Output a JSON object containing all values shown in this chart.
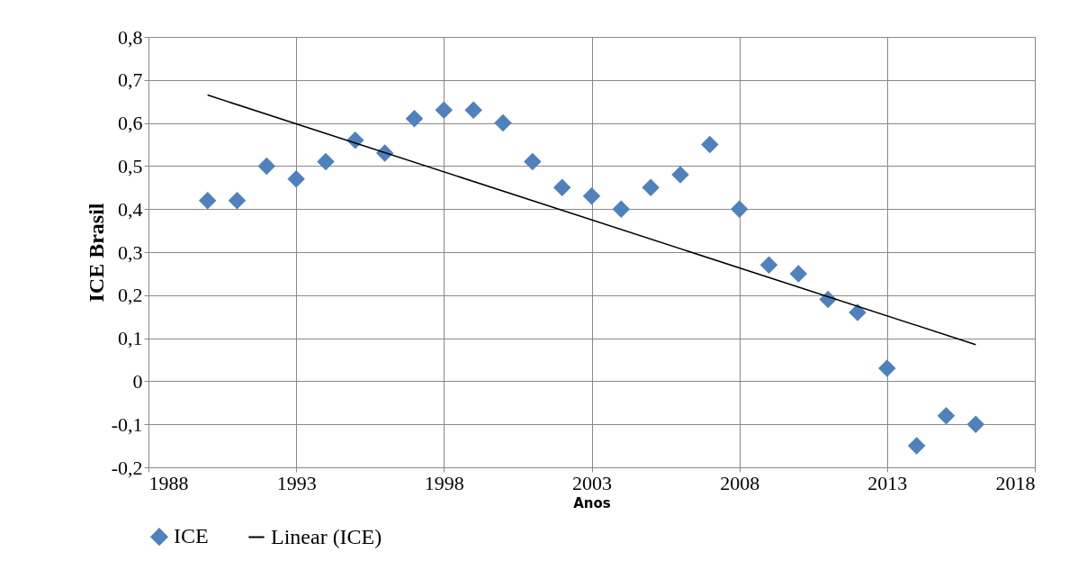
{
  "chart_data": {
    "type": "scatter",
    "xlabel": "Anos",
    "ylabel": "ICE  Brasil",
    "xlim": [
      1988,
      2018
    ],
    "xticks": [
      1988,
      1993,
      1998,
      2003,
      2008,
      2013,
      2018
    ],
    "ylim": [
      -0.2,
      0.8
    ],
    "yticks": [
      {
        "value": -0.2,
        "label": "-0,2"
      },
      {
        "value": -0.1,
        "label": "-0,1"
      },
      {
        "value": 0,
        "label": "0"
      },
      {
        "value": 0.1,
        "label": "0,1"
      },
      {
        "value": 0.2,
        "label": "0,2"
      },
      {
        "value": 0.3,
        "label": "0,3"
      },
      {
        "value": 0.4,
        "label": "0,4"
      },
      {
        "value": 0.5,
        "label": "0,5"
      },
      {
        "value": 0.6,
        "label": "0,6"
      },
      {
        "value": 0.7,
        "label": "0,7"
      },
      {
        "value": 0.8,
        "label": "0,8"
      }
    ],
    "x": [
      1990,
      1991,
      1992,
      1993,
      1994,
      1995,
      1996,
      1997,
      1998,
      1999,
      2000,
      2001,
      2002,
      2003,
      2004,
      2005,
      2006,
      2007,
      2008,
      2009,
      2010,
      2011,
      2012,
      2013,
      2014,
      2015,
      2016
    ],
    "grid": true,
    "legend": "bottom",
    "series": [
      {
        "name": "ICE",
        "marker": "diamond",
        "color": "#4f81bd",
        "values": [
          0.42,
          0.42,
          0.5,
          0.47,
          0.51,
          0.56,
          0.53,
          0.61,
          0.63,
          0.63,
          0.6,
          0.51,
          0.45,
          0.43,
          0.4,
          0.45,
          0.48,
          0.55,
          0.4,
          0.27,
          0.25,
          0.19,
          0.16,
          0.03,
          -0.15,
          -0.08,
          -0.1
        ]
      },
      {
        "name": "Linear (ICE)",
        "type": "line",
        "color": "#000000",
        "x": [
          1990,
          2016
        ],
        "values": [
          0.665,
          0.085
        ]
      }
    ]
  }
}
